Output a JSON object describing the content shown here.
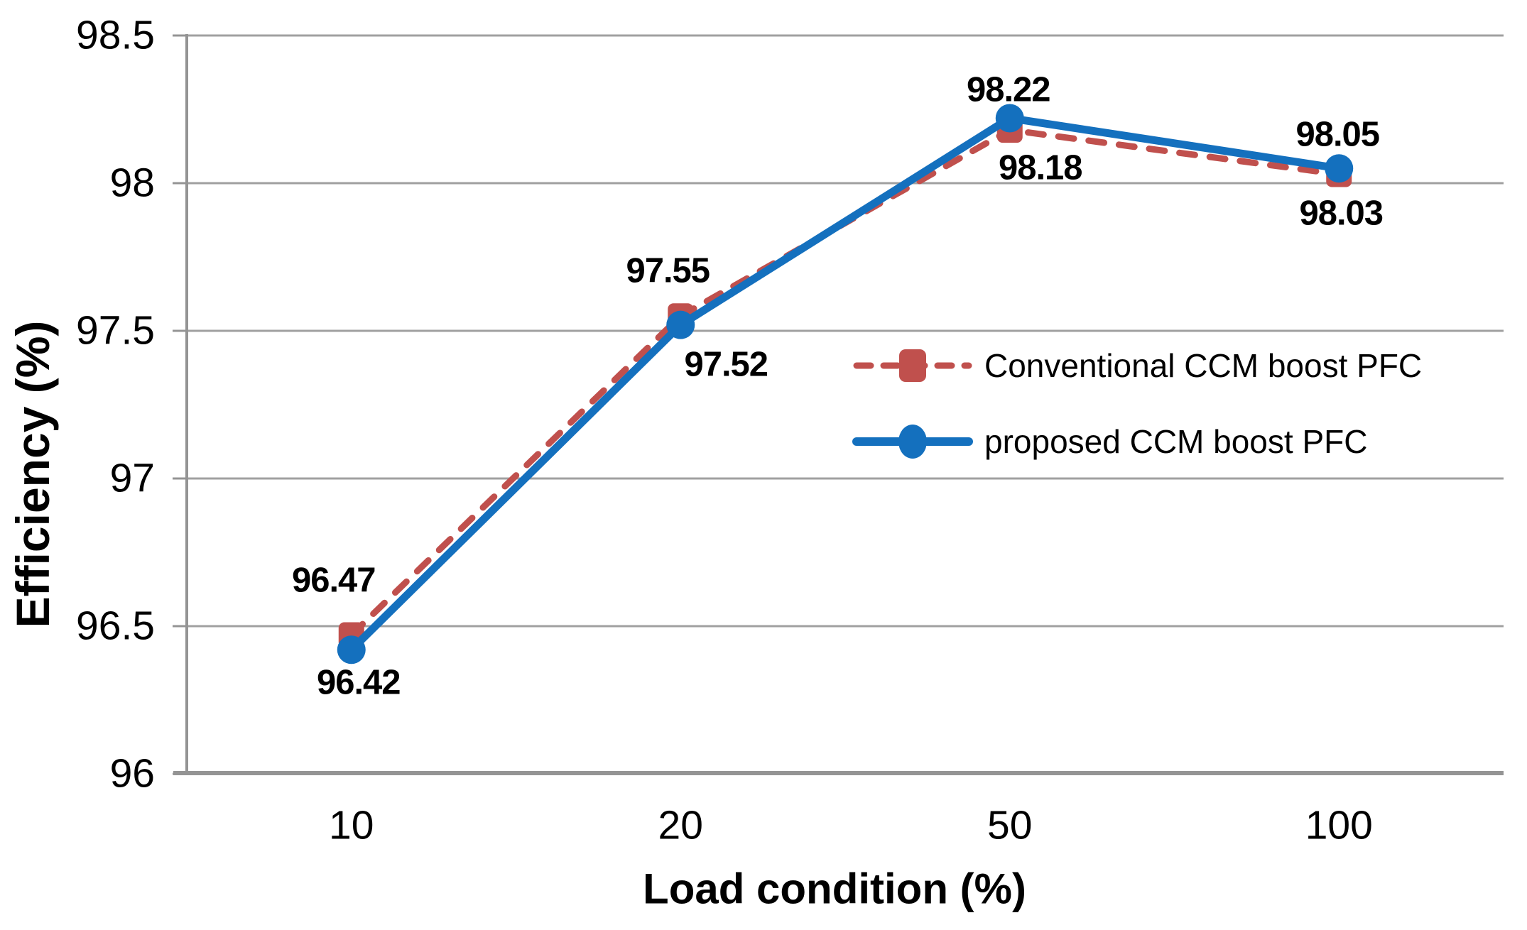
{
  "chart_data": {
    "type": "line",
    "title": "",
    "xlabel": "Load condition (%)",
    "ylabel": "Efficiency (%)",
    "categories": [
      "10",
      "20",
      "50",
      "100"
    ],
    "y_ticks": [
      96,
      96.5,
      97,
      97.5,
      98,
      98.5
    ],
    "y_tick_labels": [
      "96",
      "96.5",
      "97",
      "97.5",
      "98",
      "98.5"
    ],
    "ylim": [
      96,
      98.5
    ],
    "grid": "horizontal-only",
    "legend_position": "inside-middle-right",
    "gridline_color": "#A0A0A0",
    "axis_color": "#949494",
    "text_color": "#000000",
    "series": [
      {
        "name": "Conventional CCM boost PFC",
        "color": "#C0504D",
        "line_style": "dashed",
        "marker": "square",
        "values": [
          96.47,
          97.55,
          98.18,
          98.03
        ],
        "value_labels": [
          "96.47",
          "97.55",
          "98.18",
          "98.03"
        ],
        "label_dx": [
          -25,
          -18,
          43,
          3
        ],
        "label_dy": [
          -76,
          -63,
          54,
          55
        ]
      },
      {
        "name": "proposed CCM boost PFC",
        "color": "#1470BE",
        "line_style": "solid",
        "marker": "circle",
        "values": [
          96.42,
          97.52,
          98.22,
          98.05
        ],
        "value_labels": [
          "96.42",
          "97.52",
          "98.22",
          "98.05"
        ],
        "label_dx": [
          10,
          64,
          -2,
          -2
        ],
        "label_dy": [
          47,
          56,
          -39,
          -47
        ]
      }
    ]
  }
}
